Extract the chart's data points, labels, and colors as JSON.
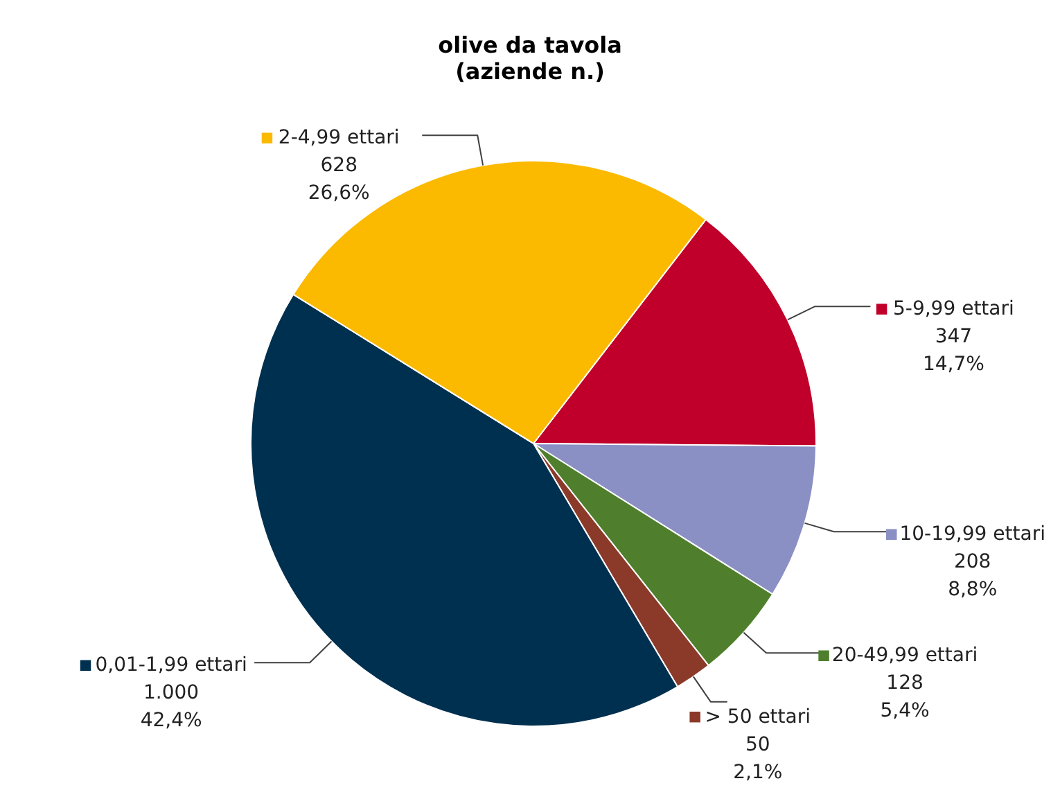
{
  "chart_data": {
    "type": "pie",
    "title": "olive da tavola",
    "subtitle": "(aziende n.)",
    "categories": [
      "5-9,99 ettari",
      "10-19,99 ettari",
      "20-49,99 ettari",
      "> 50 ettari",
      "0,01-1,99 ettari",
      "2-4,99 ettari"
    ],
    "values": [
      347,
      208,
      128,
      50,
      1000,
      628
    ],
    "colors": [
      "#c0002a",
      "#8a8fc4",
      "#4f7f2c",
      "#8b3a2a",
      "#00304f",
      "#fbba00"
    ],
    "legend": "right",
    "value_labels": [
      "347\n14,7%",
      "208\n8,8%",
      "128\n5,4%",
      "50\n2,1%",
      "1.000\n42,4%",
      "628\n26,6%"
    ]
  }
}
